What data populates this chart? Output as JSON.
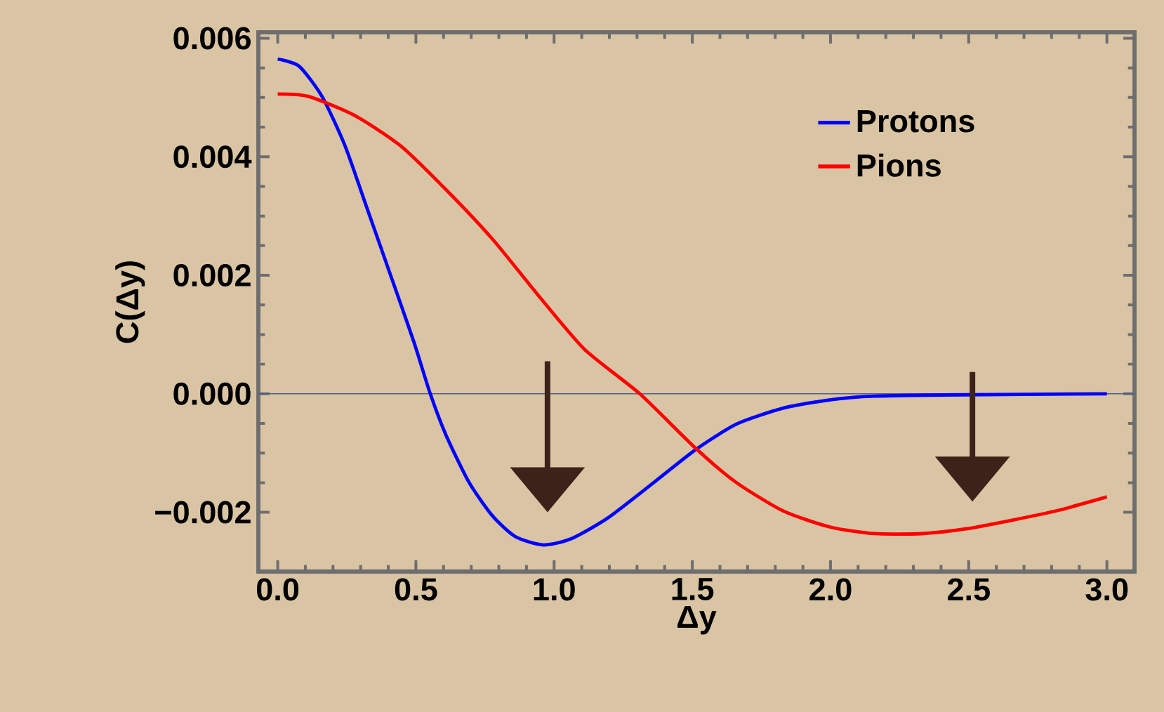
{
  "chart_data": {
    "type": "line",
    "xlabel": "Δy",
    "ylabel": "C(Δy)",
    "xlim": [
      -0.07,
      3.1
    ],
    "ylim": [
      -0.003,
      0.0061
    ],
    "xticks": [
      {
        "value": 0,
        "label": "0.0"
      },
      {
        "value": 0.5,
        "label": "0.5"
      },
      {
        "value": 1,
        "label": "1.0"
      },
      {
        "value": 1.5,
        "label": "1.5"
      },
      {
        "value": 2,
        "label": "2.0"
      },
      {
        "value": 2.5,
        "label": "2.5"
      },
      {
        "value": 3,
        "label": "3.0"
      }
    ],
    "yticks": [
      {
        "value": -0.002,
        "label": "−0.002"
      },
      {
        "value": 0,
        "label": "0.000"
      },
      {
        "value": 0.002,
        "label": "0.002"
      },
      {
        "value": 0.004,
        "label": "0.004"
      },
      {
        "value": 0.006,
        "label": "0.006"
      }
    ],
    "legend": "top right",
    "marker": "none",
    "line_style": "solid",
    "ref_lines": [
      {
        "axis": "y",
        "value": 0,
        "color": "#4f5f8f"
      }
    ],
    "series": [
      {
        "name": "Protons",
        "color": "#0000ff",
        "x": [
          0,
          0.077,
          0.16,
          0.243,
          0.327,
          0.41,
          0.493,
          0.552,
          0.61,
          0.693,
          0.777,
          0.86,
          0.96,
          1.06,
          1.193,
          1.36,
          1.51,
          1.66,
          1.83,
          2.0,
          2.16,
          2.41,
          3.0
        ],
        "values": [
          0.00565,
          0.00553,
          0.00502,
          0.00419,
          0.00308,
          0.00198,
          0.00087,
          0,
          -0.00071,
          -0.0015,
          -0.00206,
          -0.00241,
          -0.00255,
          -0.00245,
          -0.0021,
          -0.0015,
          -0.00095,
          -0.00051,
          -0.00024,
          -0.0001,
          -4e-05,
          -2e-05,
          0
        ]
      },
      {
        "name": "Pions",
        "color": "#ff0000",
        "x": [
          0,
          0.11,
          0.277,
          0.443,
          0.61,
          0.777,
          0.943,
          1.11,
          1.31,
          1.51,
          1.66,
          1.83,
          2.0,
          2.16,
          2.33,
          2.49,
          2.66,
          2.83,
          3.0
        ],
        "values": [
          0.00506,
          0.00502,
          0.0047,
          0.00419,
          0.00344,
          0.00261,
          0.00166,
          0.00075,
          0,
          -0.00091,
          -0.0015,
          -0.00198,
          -0.00225,
          -0.00236,
          -0.00236,
          -0.00228,
          -0.00213,
          -0.00196,
          -0.00174
        ]
      }
    ]
  }
}
